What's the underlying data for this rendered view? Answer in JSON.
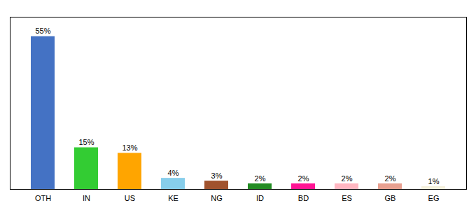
{
  "chart_data": {
    "type": "bar",
    "categories": [
      "OTH",
      "IN",
      "US",
      "KE",
      "NG",
      "ID",
      "BD",
      "ES",
      "GB",
      "EG"
    ],
    "values": [
      55,
      15,
      13,
      4,
      3,
      2,
      2,
      2,
      2,
      1
    ],
    "value_labels": [
      "55%",
      "15%",
      "13%",
      "4%",
      "3%",
      "2%",
      "2%",
      "2%",
      "2%",
      "1%"
    ],
    "colors": [
      "#4472C4",
      "#33CC33",
      "#FFA500",
      "#87CEEB",
      "#A0522D",
      "#228B22",
      "#FF1493",
      "#FFB6C1",
      "#E8A090",
      "#F5F0DC"
    ],
    "ylim": [
      0,
      62
    ],
    "grid": false,
    "data_labels": true,
    "tick_labels": "x"
  }
}
